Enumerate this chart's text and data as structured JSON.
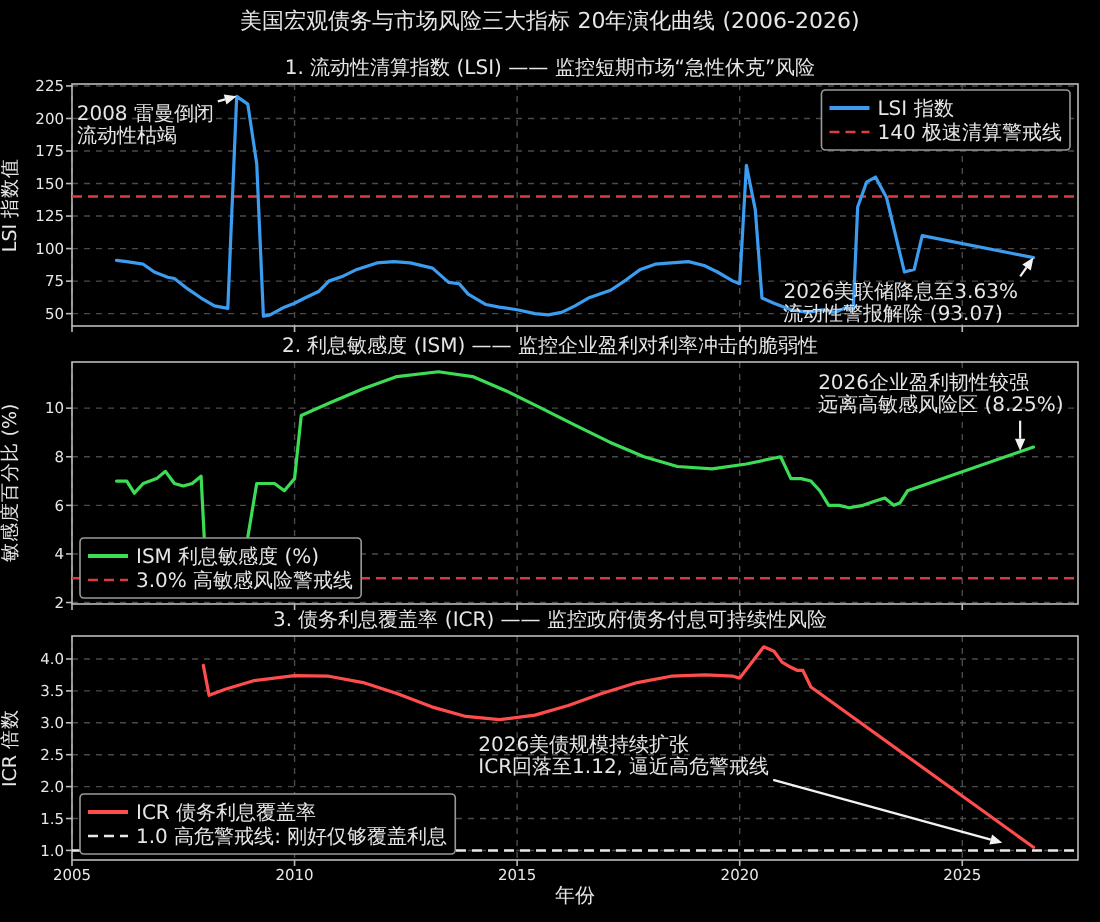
{
  "chart_data": [
    {
      "type": "line",
      "title": "美国宏观债务与市场风险三大指标 20年演化曲线 (2006-2026)",
      "subtitle": "1. 流动性清算指数 (LSI) —— 监控短期市场“急性休克”风险",
      "ylabel": "LSI 指数值",
      "x": [
        2006.0,
        2006.23,
        2006.6,
        2006.85,
        2007.15,
        2007.3,
        2007.6,
        2007.9,
        2008.2,
        2008.5,
        2008.7,
        2008.95,
        2009.15,
        2009.3,
        2009.45,
        2009.77,
        2010.0,
        2010.23,
        2010.54,
        2010.77,
        2011.1,
        2011.4,
        2011.85,
        2012.23,
        2012.6,
        2013.1,
        2013.46,
        2013.7,
        2013.9,
        2014.3,
        2014.6,
        2015.0,
        2015.4,
        2015.7,
        2016.0,
        2016.3,
        2016.6,
        2017.1,
        2017.45,
        2017.77,
        2018.1,
        2018.46,
        2018.85,
        2019.2,
        2019.5,
        2019.85,
        2020.0,
        2020.15,
        2020.35,
        2020.5,
        2020.77,
        2021.15,
        2021.54,
        2021.85,
        2022.15,
        2022.4,
        2022.55,
        2022.65,
        2022.85,
        2023.05,
        2023.3,
        2023.7,
        2023.92,
        2024.1,
        2026.6
      ],
      "series": [
        {
          "name": "LSI 指数",
          "color": "#3b9cf0",
          "values": [
            91,
            90,
            88,
            82,
            78,
            77,
            69,
            62,
            56,
            54,
            217,
            211,
            165,
            48,
            49,
            55,
            58,
            62,
            67,
            75,
            79,
            84,
            89,
            90,
            89,
            85,
            74,
            73,
            65,
            57,
            55,
            53,
            50,
            49,
            51,
            56,
            62,
            68,
            76,
            84,
            88,
            89,
            90,
            87,
            82,
            75,
            73,
            164,
            130,
            62,
            58,
            53,
            51,
            53,
            51,
            55,
            53,
            132,
            151,
            155,
            139,
            82,
            84,
            110,
            93.07
          ]
        }
      ],
      "xlim": [
        2005,
        2027.6
      ],
      "xticks": [
        2005,
        2010,
        2015,
        2020,
        2025
      ],
      "ylim": [
        40.5,
        226.5
      ],
      "yticks": [
        50,
        75,
        100,
        125,
        150,
        175,
        200,
        225
      ],
      "tick_labels": "y",
      "grid": true,
      "legend": "top right",
      "ref_lines": [
        {
          "axis": "y",
          "value": 140,
          "label": "140 极速清算警戒线",
          "color": "#e03c3c",
          "line_style": "dashed"
        }
      ],
      "annotations": [
        {
          "text": "2008 雷曼倒闭流动性枯竭",
          "x": 2008.7,
          "y": 217
        },
        {
          "text": "2026美联储降息至3.63%\n流动性警报解除 (93.07)",
          "x": 2026.6,
          "y": 93.07
        }
      ]
    },
    {
      "type": "line",
      "title": "2. 利息敏感度 (ISM) —— 监控企业盈利对利率冲击的脆弱性",
      "ylabel": "敏感度百分比 (%)",
      "x": [
        2006.0,
        2006.23,
        2006.4,
        2006.6,
        2006.75,
        2006.9,
        2007.1,
        2007.3,
        2007.5,
        2007.7,
        2007.9,
        2007.97,
        2008.45,
        2008.95,
        2009.15,
        2009.38,
        2009.55,
        2009.77,
        2010.0,
        2010.15,
        2010.77,
        2011.54,
        2012.3,
        2013.23,
        2014.0,
        2014.77,
        2015.54,
        2016.3,
        2017.08,
        2017.85,
        2018.6,
        2019.38,
        2020.15,
        2020.92,
        2021.15,
        2021.38,
        2021.6,
        2021.8,
        2022.0,
        2022.23,
        2022.46,
        2022.77,
        2023.08,
        2023.26,
        2023.46,
        2023.6,
        2023.77,
        2026.6
      ],
      "series": [
        {
          "name": "ISM 利息敏感度 (%)",
          "color": "#3ddc57",
          "values": [
            7.0,
            7.0,
            6.5,
            6.9,
            7.0,
            7.1,
            7.4,
            6.9,
            6.8,
            6.9,
            7.2,
            4.7,
            null,
            4.7,
            6.9,
            6.9,
            6.9,
            6.6,
            7.1,
            9.7,
            10.2,
            10.8,
            11.3,
            11.5,
            11.3,
            10.7,
            10.0,
            9.3,
            8.6,
            8.0,
            7.6,
            7.5,
            7.7,
            8.0,
            7.1,
            7.1,
            7.0,
            6.6,
            6.0,
            6.0,
            5.9,
            6.0,
            6.2,
            6.3,
            6.0,
            6.1,
            6.6,
            8.4
          ]
        }
      ],
      "xlim": [
        2005,
        2027.6
      ],
      "xticks": [
        2005,
        2010,
        2015,
        2020,
        2025
      ],
      "ylim": [
        1.94,
        11.9
      ],
      "yticks": [
        2,
        4,
        6,
        8,
        10
      ],
      "tick_labels": "y",
      "grid": true,
      "legend": "bottom left",
      "ref_lines": [
        {
          "axis": "y",
          "value": 3.0,
          "label": "3.0% 高敏感风险警戒线",
          "color": "#d93a3a",
          "line_style": "dashed"
        }
      ],
      "annotations": [
        {
          "text": "2026企业盈利韧性较强远离高敏感风险区 (8.25%)",
          "x": 2026.3,
          "y": 8.25
        }
      ]
    },
    {
      "type": "line",
      "title": "3. 债务利息覆盖率 (ICR) —— 监控政府债务付息可持续性风险",
      "xlabel": "年份",
      "ylabel": "ICR 倍数",
      "x": [
        2007.95,
        2008.08,
        2008.46,
        2009.08,
        2010.0,
        2010.77,
        2011.54,
        2012.3,
        2013.08,
        2013.85,
        2014.6,
        2015.4,
        2016.15,
        2016.9,
        2017.7,
        2018.46,
        2019.23,
        2019.85,
        2020.0,
        2020.54,
        2020.77,
        2020.95,
        2021.15,
        2021.3,
        2021.42,
        2021.6,
        2026.6
      ],
      "series": [
        {
          "name": "ICR 债务利息覆盖率",
          "color": "#ff4d4d",
          "values": [
            3.9,
            3.43,
            3.53,
            3.66,
            3.74,
            3.73,
            3.63,
            3.46,
            3.25,
            3.1,
            3.05,
            3.12,
            3.27,
            3.46,
            3.63,
            3.73,
            3.75,
            3.73,
            3.7,
            4.19,
            4.12,
            3.95,
            3.87,
            3.82,
            3.82,
            3.56,
            1.05
          ]
        }
      ],
      "xlim": [
        2005,
        2027.6
      ],
      "xticks": [
        2005,
        2010,
        2015,
        2020,
        2025
      ],
      "ylim": [
        0.85,
        4.36
      ],
      "yticks": [
        {
          "value": 1,
          "label": "1.0"
        },
        {
          "value": 1.5,
          "label": "1.5"
        },
        {
          "value": 2,
          "label": "2.0"
        },
        {
          "value": 2.5,
          "label": "2.5"
        },
        {
          "value": 3,
          "label": "3.0"
        },
        {
          "value": 3.5,
          "label": "3.5"
        },
        {
          "value": 4,
          "label": "4.0"
        }
      ],
      "grid": true,
      "legend": "bottom left",
      "ref_lines": [
        {
          "axis": "y",
          "value": 1.0,
          "label": "1.0 高危警戒线: 刚好仅够覆盖利息",
          "color": "#e8e8e8",
          "line_style": "dashed"
        }
      ],
      "annotations": [
        {
          "text": "2026美债规模持续扩张\nICR回落至1.12, 逼近高危警戒线",
          "x": 2025.9,
          "y": 1.12
        }
      ]
    }
  ]
}
